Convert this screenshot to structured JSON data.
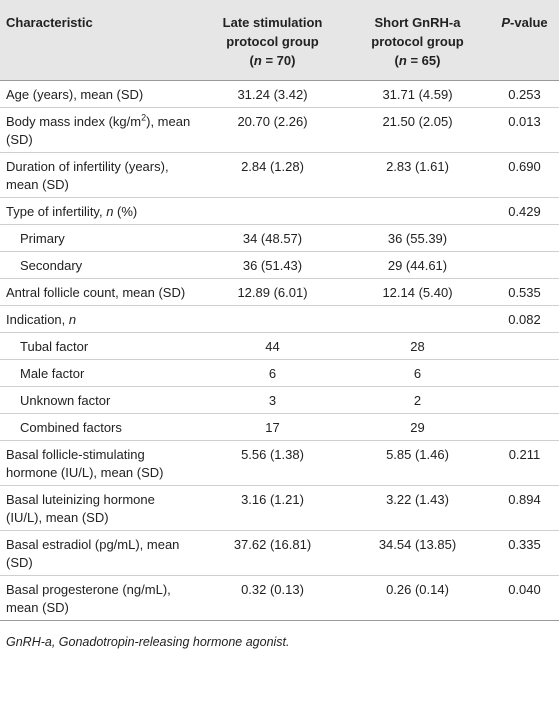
{
  "table": {
    "headers": {
      "characteristic": "Characteristic",
      "late_line1": "Late stimulation",
      "late_line2": "protocol group",
      "late_n_var": "n",
      "late_n_rest": " = 70)",
      "short_line1": "Short GnRH-a",
      "short_line2": "protocol group",
      "short_n_var": "n",
      "short_n_rest": " = 65)",
      "pvalue_italic": "P",
      "pvalue_rest": "-value"
    },
    "rows": [
      {
        "label": "Age (years), mean (SD)",
        "late": "31.24 (3.42)",
        "short": "31.71 (4.59)",
        "p": "0.253"
      },
      {
        "label_pre": "Body mass index (kg/m",
        "label_sup": "2",
        "label_post": "), mean (SD)",
        "late": "20.70 (2.26)",
        "short": "21.50 (2.05)",
        "p": "0.013"
      },
      {
        "label": "Duration of infertility (years), mean (SD)",
        "late": "2.84 (1.28)",
        "short": "2.83 (1.61)",
        "p": "0.690"
      },
      {
        "label_pre": "Type of infertility, ",
        "label_italic": "n",
        "label_post": " (%)",
        "late": "",
        "short": "",
        "p": "0.429"
      },
      {
        "label": "Primary",
        "late": "34 (48.57)",
        "short": "36 (55.39)",
        "p": ""
      },
      {
        "label": "Secondary",
        "late": "36 (51.43)",
        "short": "29 (44.61)",
        "p": ""
      },
      {
        "label": "Antral follicle count, mean (SD)",
        "late": "12.89 (6.01)",
        "short": "12.14 (5.40)",
        "p": "0.535"
      },
      {
        "label_pre": "Indication, ",
        "label_italic": "n",
        "late": "",
        "short": "",
        "p": "0.082"
      },
      {
        "label": "Tubal factor",
        "late": "44",
        "short": "28",
        "p": ""
      },
      {
        "label": "Male factor",
        "late": "6",
        "short": "6",
        "p": ""
      },
      {
        "label": "Unknown factor",
        "late": "3",
        "short": "2",
        "p": ""
      },
      {
        "label": "Combined factors",
        "late": "17",
        "short": "29",
        "p": ""
      },
      {
        "label": "Basal follicle-stimulating hormone (IU/L), mean (SD)",
        "late": "5.56 (1.38)",
        "short": "5.85 (1.46)",
        "p": "0.211"
      },
      {
        "label": "Basal luteinizing hormone (IU/L), mean (SD)",
        "late": "3.16 (1.21)",
        "short": "3.22 (1.43)",
        "p": "0.894"
      },
      {
        "label": "Basal estradiol (pg/mL), mean (SD)",
        "late": "37.62 (16.81)",
        "short": "34.54 (13.85)",
        "p": "0.335"
      },
      {
        "label": "Basal progesterone (ng/mL), mean (SD)",
        "late": "0.32 (0.13)",
        "short": "0.26 (0.14)",
        "p": "0.040"
      }
    ]
  },
  "footnote": "GnRH-a, Gonadotropin-releasing hormone agonist."
}
